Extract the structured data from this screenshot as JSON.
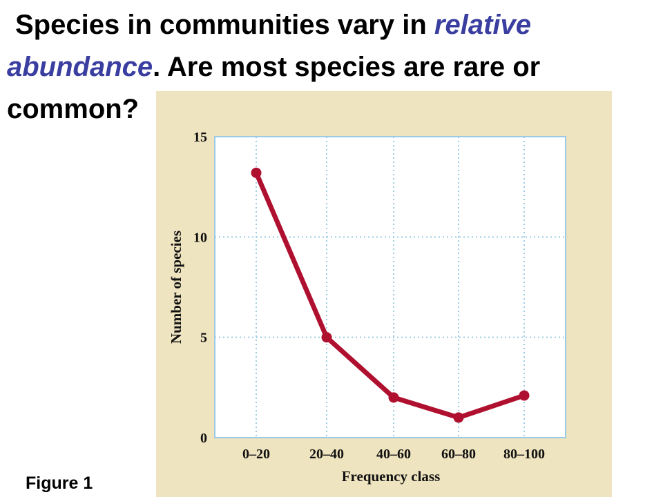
{
  "title": {
    "part1": "Species in communities vary in ",
    "highlight": "relative abundance",
    "part2": ".  Are most species are rare or common?"
  },
  "figure_label": "Figure 1",
  "colors": {
    "panel": "#efe4c0",
    "plot_bg": "#ffffff",
    "grid": "#9ccae4",
    "line": "#b0102f",
    "highlight_text": "#3a3ea0"
  },
  "chart_data": {
    "type": "line",
    "categories": [
      "0–20",
      "20–40",
      "40–60",
      "60–80",
      "80–100"
    ],
    "values": [
      13.2,
      5.0,
      2.0,
      1.0,
      2.1
    ],
    "xlabel": "Frequency class",
    "ylabel": "Number of species",
    "ylim": [
      0,
      15
    ],
    "yticks": [
      "0",
      "5",
      "10",
      "15"
    ],
    "grid": true
  }
}
